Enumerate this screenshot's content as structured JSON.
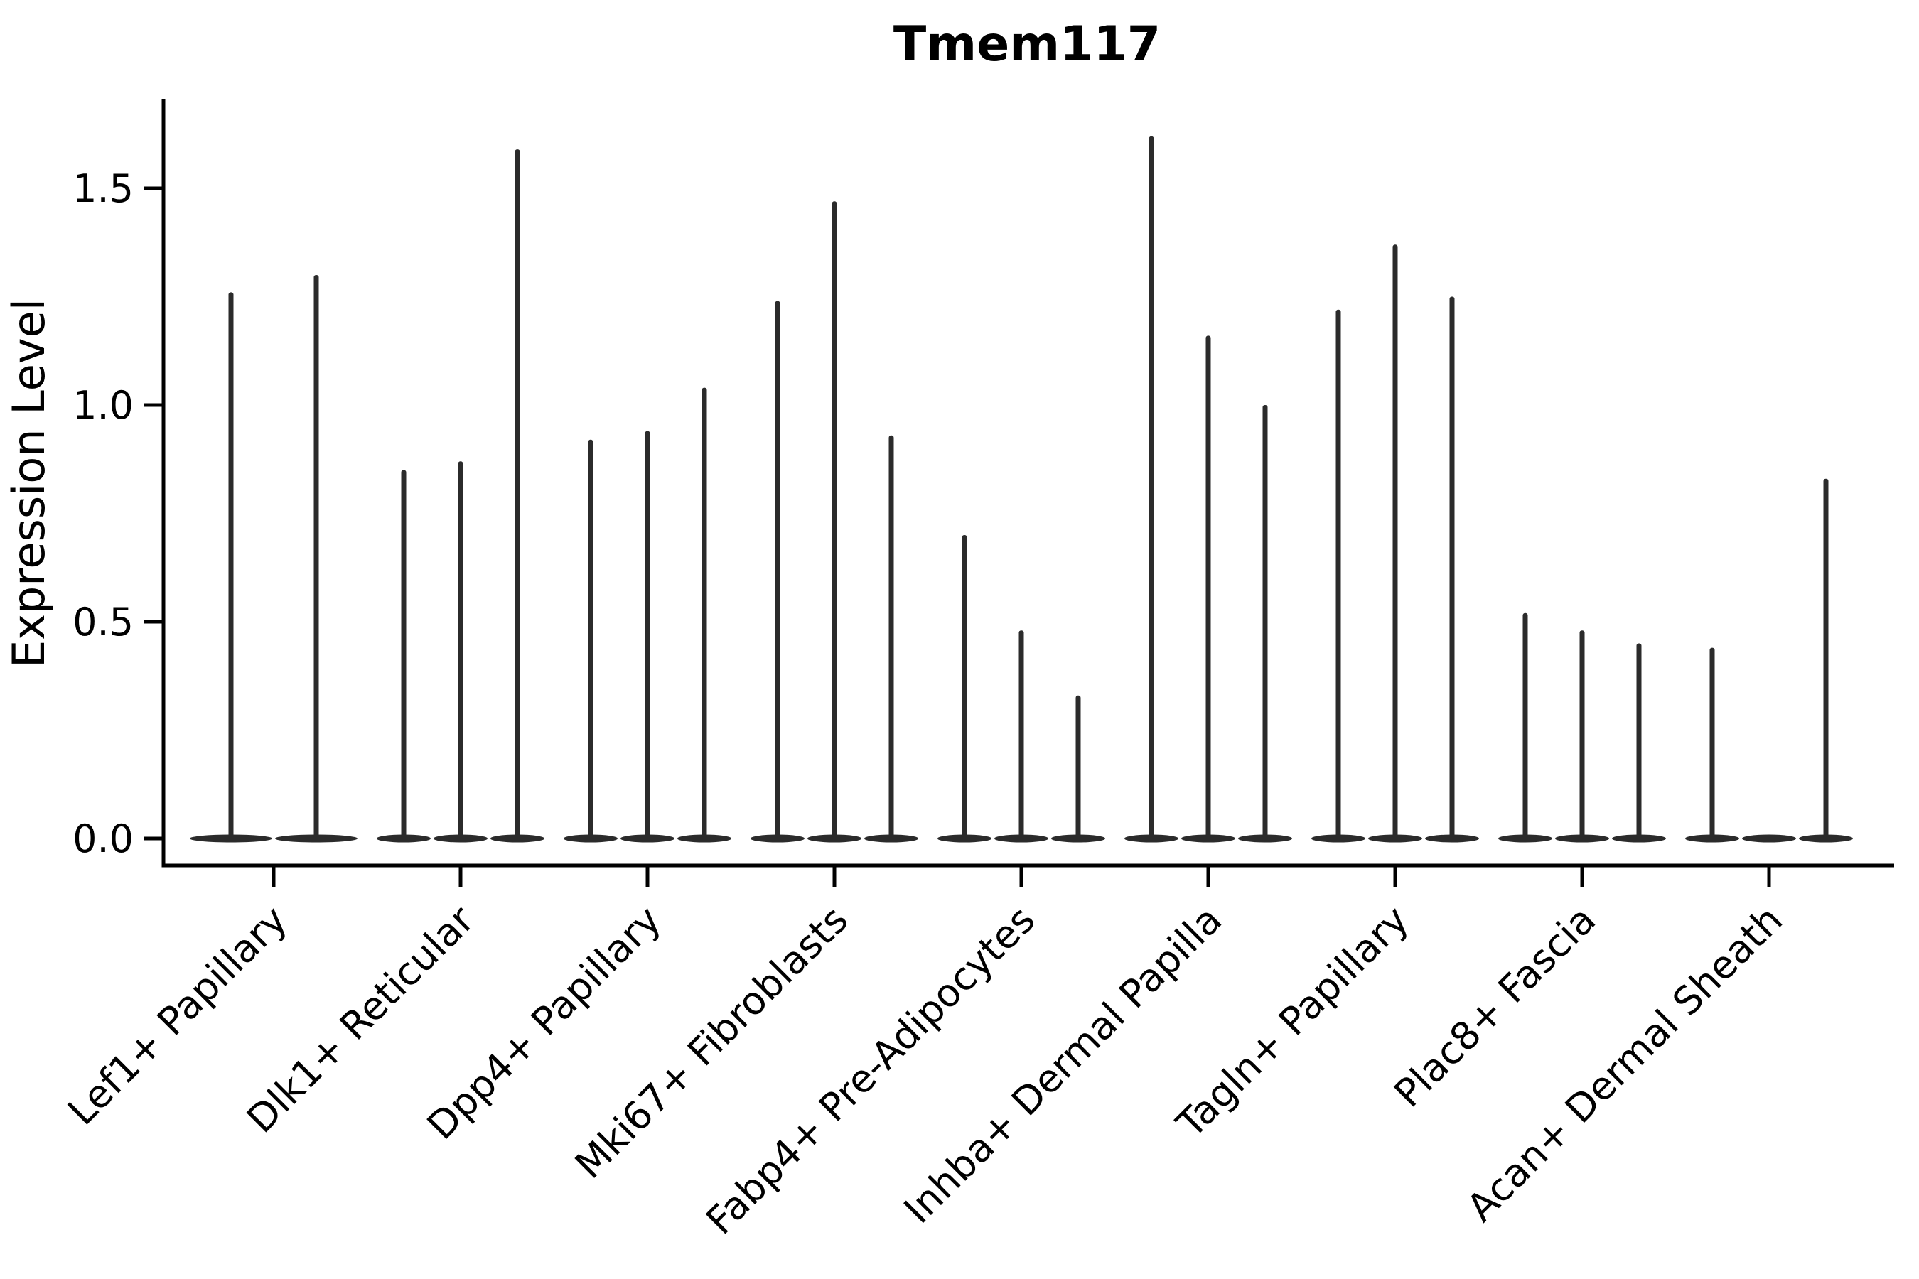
{
  "title": "Tmem117",
  "y_axis": {
    "label": "Expression Level",
    "tick_labels": [
      "0.0",
      "0.5",
      "1.0",
      "1.5"
    ]
  },
  "chart_data": {
    "type": "violin",
    "title": "Tmem117",
    "xlabel": "",
    "ylabel": "Expression Level",
    "ylim": [
      -0.06,
      1.7
    ],
    "yticks": [
      0.0,
      0.5,
      1.0,
      1.5
    ],
    "grid": false,
    "legend": "none",
    "categories": [
      "Lef1+ Papillary",
      "Dlk1+ Reticular",
      "Dpp4+ Papillary",
      "Mki67+ Fibroblasts",
      "Fabp4+ Pre-Adipocytes",
      "Inhba+ Dermal Papilla",
      "Tagln+ Papillary",
      "Plac8+ Fascia",
      "Acan+ Dermal Sheath"
    ],
    "note": "Each category shows thin zero-inflated violins (wide flat base at 0, thin spike to max expression). Values below are the spike tip heights; 0 means flat base with no spike.",
    "violin_tips": [
      [
        1.26,
        1.3
      ],
      [
        0.85,
        0.87,
        1.59
      ],
      [
        0.92,
        0.94,
        1.04
      ],
      [
        1.24,
        1.47,
        0.93
      ],
      [
        0.7,
        0.48,
        0.33
      ],
      [
        1.62,
        1.16,
        1.0
      ],
      [
        1.22,
        1.37,
        1.25
      ],
      [
        0.52,
        0.48,
        0.45
      ],
      [
        0.44,
        0.0,
        0.83
      ]
    ],
    "violin_color": "#2b2b2b",
    "axis_color": "#000000",
    "background_color": "#ffffff"
  }
}
